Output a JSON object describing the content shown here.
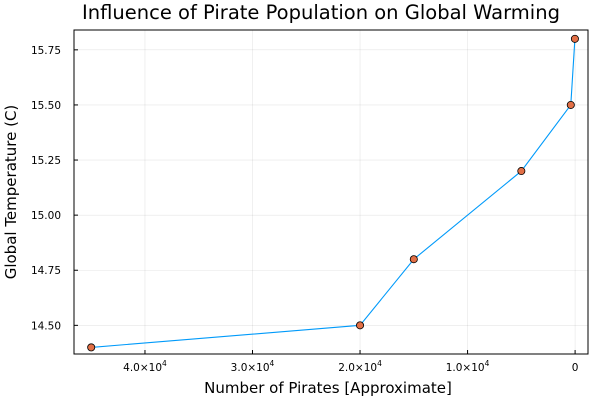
{
  "chart_data": {
    "type": "line",
    "title": "Influence of Pirate Population on Global Warming",
    "xlabel": "Number of Pirates [Approximate]",
    "ylabel": "Global Temperature (C)",
    "x_axis_reversed": true,
    "xlim": [
      46600,
      -1200
    ],
    "ylim": [
      14.37,
      15.84
    ],
    "x_ticks": [
      {
        "value": 40000,
        "mantissa": "4.0×10",
        "exponent": "4"
      },
      {
        "value": 30000,
        "mantissa": "3.0×10",
        "exponent": "4"
      },
      {
        "value": 20000,
        "mantissa": "2.0×10",
        "exponent": "4"
      },
      {
        "value": 10000,
        "mantissa": "1.0×10",
        "exponent": "4"
      },
      {
        "value": 0,
        "mantissa": "0",
        "exponent": ""
      }
    ],
    "y_ticks": [
      {
        "value": 14.5,
        "label": "14.50"
      },
      {
        "value": 14.75,
        "label": "14.75"
      },
      {
        "value": 15.0,
        "label": "15.00"
      },
      {
        "value": 15.25,
        "label": "15.25"
      },
      {
        "value": 15.5,
        "label": "15.50"
      },
      {
        "value": 15.75,
        "label": "15.75"
      }
    ],
    "grid": true,
    "legend": "none",
    "series": [
      {
        "x": [
          45000,
          20000,
          15000,
          5000,
          400,
          17
        ],
        "y": [
          14.4,
          14.5,
          14.8,
          15.2,
          15.5,
          15.8
        ],
        "line_color": "#009AFA",
        "marker_color": "#E26F46",
        "marker_edge_color": "#000000"
      }
    ]
  }
}
